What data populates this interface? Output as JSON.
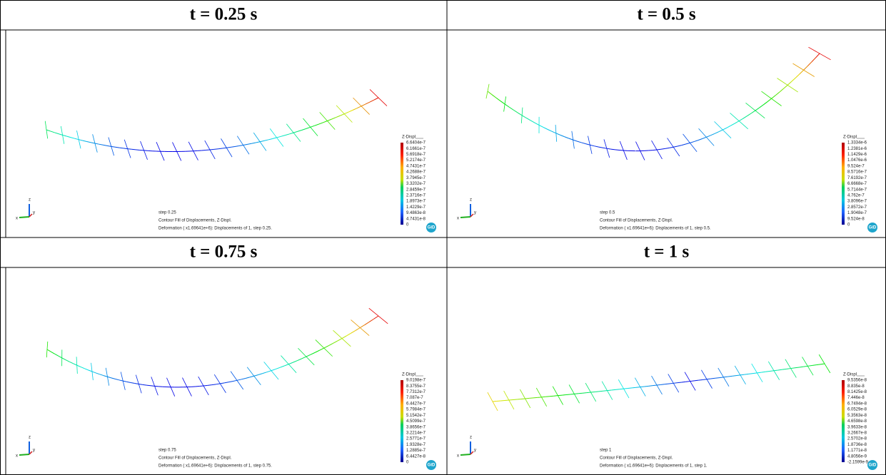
{
  "panels": [
    {
      "title": "t = 0.25 s",
      "legend": {
        "title": "Z-Displ",
        "labels": [
          "6.6404e-7",
          "6.1661e-7",
          "5.6918e-7",
          "5.2174e-7",
          "4.7431e-7",
          "4.2688e-7",
          "3.7945e-7",
          "3.3202e-7",
          "2.8459e-7",
          "2.3716e-7",
          "1.8973e-7",
          "1.4229e-7",
          "9.4863e-8",
          "4.7431e-8",
          "0"
        ]
      },
      "step": "step 0.25",
      "contour": "Contour Fill of Displacements, Z-Displ.",
      "deformation": "Deformation ( x1.69641e+6): Displacements of 1, step 0.25."
    },
    {
      "title": "t = 0.5 s",
      "legend": {
        "title": "Z-Displ",
        "labels": [
          "1.3334e-6",
          "1.2381e-6",
          "1.1429e-6",
          "1.0476e-6",
          "9.524e-7",
          "8.5716e-7",
          "7.6192e-7",
          "6.6668e-7",
          "5.7144e-7",
          "4.762e-7",
          "3.8096e-7",
          "2.8572e-7",
          "1.9048e-7",
          "9.524e-8",
          "0"
        ]
      },
      "step": "step 0.5",
      "contour": "Contour Fill of Displacements, Z-Displ.",
      "deformation": "Deformation ( x1.69641e+6): Displacements of 1, step 0.5."
    },
    {
      "title": "t = 0.75 s",
      "legend": {
        "title": "Z-Displ",
        "labels": [
          "9.0198e-7",
          "8.3755e-7",
          "7.7312e-7",
          "7.087e-7",
          "6.4427e-7",
          "5.7984e-7",
          "5.1542e-7",
          "4.5099e-7",
          "3.8656e-7",
          "3.2214e-7",
          "2.5771e-7",
          "1.9328e-7",
          "1.2885e-7",
          "6.4427e-8",
          "0"
        ]
      },
      "step": "step 0.75",
      "contour": "Contour Fill of Displacements, Z-Displ.",
      "deformation": "Deformation ( x1.69641e+6): Displacements of 1, step 0.75."
    },
    {
      "title": "t = 1 s",
      "legend": {
        "title": "Z-Displ",
        "labels": [
          "9.5356e-8",
          "8.835e-8",
          "8.1425e-8",
          "7.446e-8",
          "6.7494e-8",
          "6.0529e-8",
          "5.3563e-8",
          "4.6598e-8",
          "3.9633e-8",
          "3.2667e-8",
          "2.5702e-8",
          "1.8736e-8",
          "1.1771e-8",
          "4.8056e-9",
          "-2.1599e-9"
        ]
      },
      "step": "step 1",
      "contour": "Contour Fill of Displacements, Z-Displ.",
      "deformation": "Deformation ( x1.69641e+6): Displacements of 1, step 1."
    }
  ],
  "logo": "GiD",
  "axis_labels": {
    "x": "x",
    "y": "y",
    "z": "z"
  }
}
